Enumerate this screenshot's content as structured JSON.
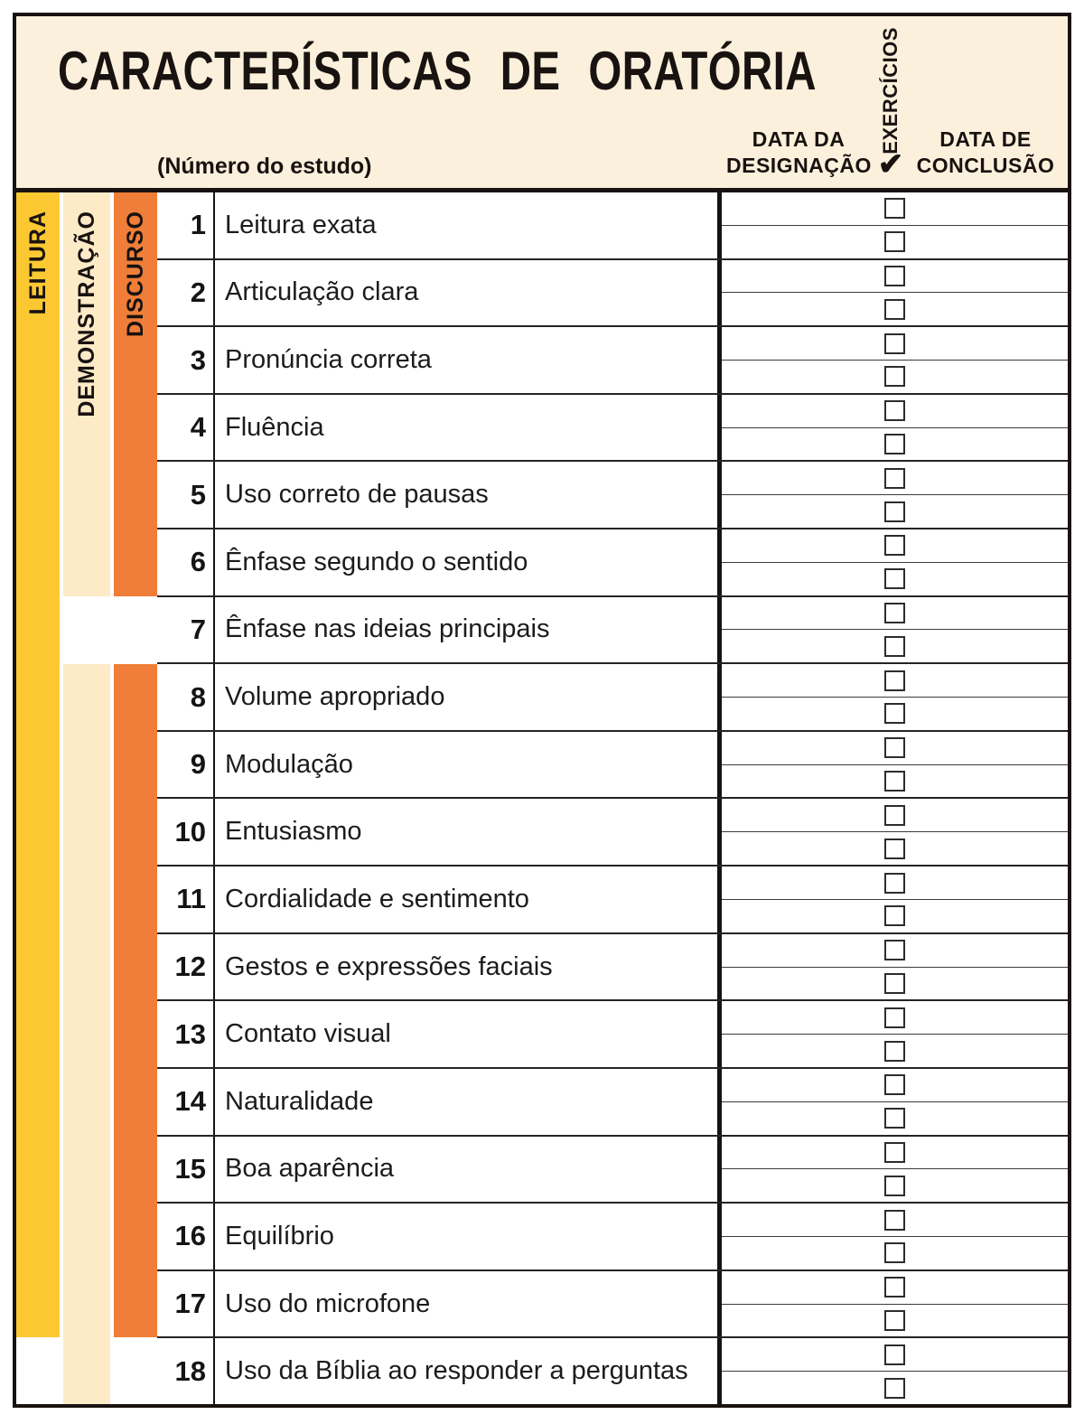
{
  "header": {
    "title": "CARACTERÍSTICAS  DE  ORATÓRIA",
    "subtitle": "(Número do estudo)",
    "assign_col_line1": "DATA  DA",
    "assign_col_line2": "DESIGNAÇÃO",
    "exercises_col": "EXERCÍCIOS",
    "exercises_checkmark": "✔",
    "complete_col_line1": "DATA  DE",
    "complete_col_line2": "CONCLUSÃO"
  },
  "bands": [
    {
      "label": "LEITURA",
      "color": "#FCC832",
      "coverage": "rows 1-17"
    },
    {
      "label": "DEMONSTRAÇÃO",
      "color": "#FDEBC8",
      "coverage": "rows 1-6 and 8-18"
    },
    {
      "label": "DISCURSO",
      "color": "#F07E38",
      "coverage": "rows 1-6 and 8-17"
    }
  ],
  "rows": [
    {
      "num": "1",
      "label": "Leitura exata"
    },
    {
      "num": "2",
      "label": "Articulação clara"
    },
    {
      "num": "3",
      "label": "Pronúncia correta"
    },
    {
      "num": "4",
      "label": "Fluência"
    },
    {
      "num": "5",
      "label": "Uso correto de pausas"
    },
    {
      "num": "6",
      "label": "Ênfase segundo o sentido"
    },
    {
      "num": "7",
      "label": "Ênfase nas ideias principais"
    },
    {
      "num": "8",
      "label": "Volume apropriado"
    },
    {
      "num": "9",
      "label": "Modulação"
    },
    {
      "num": "10",
      "label": "Entusiasmo"
    },
    {
      "num": "11",
      "label": "Cordialidade e sentimento"
    },
    {
      "num": "12",
      "label": "Gestos e expressões faciais"
    },
    {
      "num": "13",
      "label": "Contato visual"
    },
    {
      "num": "14",
      "label": "Naturalidade"
    },
    {
      "num": "15",
      "label": "Boa aparência"
    },
    {
      "num": "16",
      "label": "Equilíbrio"
    },
    {
      "num": "17",
      "label": "Uso do microfone"
    },
    {
      "num": "18",
      "label": "Uso da Bíblia ao responder a perguntas"
    }
  ],
  "colors": {
    "header_bg": "#FAF0DC",
    "yellow": "#FCC832",
    "cream": "#FDEBC8",
    "orange": "#F07E38"
  }
}
